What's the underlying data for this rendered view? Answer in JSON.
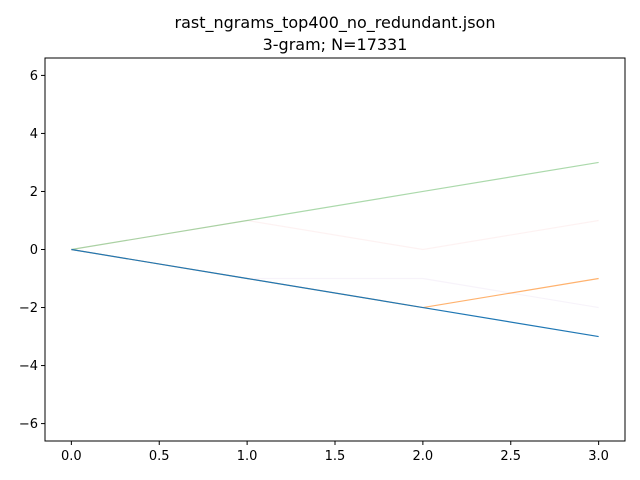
{
  "chart_data": {
    "type": "line",
    "title": "rast_ngrams_top400_no_redundant.json",
    "subtitle": "3-gram; N=17331",
    "xlabel": "",
    "ylabel": "",
    "xlim": [
      -0.15,
      3.15
    ],
    "ylim": [
      -6.6,
      6.6
    ],
    "xticks": [
      0.0,
      0.5,
      1.0,
      1.5,
      2.0,
      2.5,
      3.0
    ],
    "xtick_labels": [
      "0.0",
      "0.5",
      "1.0",
      "1.5",
      "2.0",
      "2.5",
      "3.0"
    ],
    "yticks": [
      -6,
      -4,
      -2,
      0,
      2,
      4,
      6
    ],
    "ytick_labels": [
      "−6",
      "−4",
      "−2",
      "0",
      "2",
      "4",
      "6"
    ],
    "grid": false,
    "legend": "none",
    "series": [
      {
        "x": [
          0,
          1,
          2,
          3
        ],
        "y": [
          0,
          1,
          0,
          1
        ],
        "color": "#d62728",
        "opacity": 0.06
      },
      {
        "x": [
          0,
          1,
          2,
          3
        ],
        "y": [
          0,
          -1,
          -1,
          -2
        ],
        "color": "#9467bd",
        "opacity": 0.08
      },
      {
        "x": [
          0,
          1,
          2,
          3
        ],
        "y": [
          0,
          -1,
          -2,
          -1
        ],
        "color": "#ff7f0e",
        "opacity": 0.6
      },
      {
        "x": [
          0,
          1,
          2,
          3
        ],
        "y": [
          0,
          1,
          2,
          3
        ],
        "color": "#2ca02c",
        "opacity": 0.4
      },
      {
        "x": [
          0,
          1,
          2,
          3
        ],
        "y": [
          0,
          -1,
          -2,
          -3
        ],
        "color": "#1f77b4",
        "opacity": 1.0
      }
    ]
  }
}
